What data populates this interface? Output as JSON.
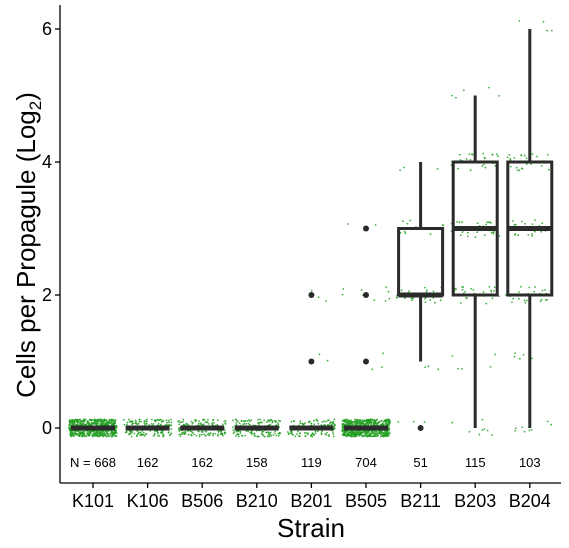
{
  "chart_data": {
    "type": "box",
    "xlabel": "Strain",
    "ylabel_main": "Cells per Propagule (Log",
    "ylabel_sub": "2",
    "ylabel_close": ")",
    "ylim": [
      -0.8,
      6.3
    ],
    "yticks": [
      0,
      2,
      4,
      6
    ],
    "ytick_labels": [
      "0",
      "2",
      "4",
      "6"
    ],
    "grid": false,
    "categories": [
      "K101",
      "K106",
      "B506",
      "B210",
      "B201",
      "B505",
      "B211",
      "B203",
      "B204"
    ],
    "counts": [
      "N = 668",
      "162",
      "162",
      "158",
      "119",
      "704",
      "51",
      "115",
      "103"
    ],
    "count_n": [
      668,
      162,
      162,
      158,
      119,
      704,
      51,
      115,
      103
    ],
    "count_y": -0.53,
    "colors": {
      "points": "#22a022",
      "box": "#2b2b2b",
      "axis": "#000000"
    },
    "boxes": [
      {
        "q1": 0,
        "median": 0,
        "q3": 0,
        "whisker_low": 0,
        "whisker_high": 0,
        "outliers": []
      },
      {
        "q1": 0,
        "median": 0,
        "q3": 0,
        "whisker_low": 0,
        "whisker_high": 0,
        "outliers": []
      },
      {
        "q1": 0,
        "median": 0,
        "q3": 0,
        "whisker_low": 0,
        "whisker_high": 0,
        "outliers": []
      },
      {
        "q1": 0,
        "median": 0,
        "q3": 0,
        "whisker_low": 0,
        "whisker_high": 0,
        "outliers": []
      },
      {
        "q1": 0,
        "median": 0,
        "q3": 0,
        "whisker_low": 0,
        "whisker_high": 0,
        "outliers": [
          1,
          2
        ]
      },
      {
        "q1": 0,
        "median": 0,
        "q3": 0,
        "whisker_low": 0,
        "whisker_high": 0,
        "outliers": [
          1,
          2,
          3
        ]
      },
      {
        "q1": 2,
        "median": 2,
        "q3": 3,
        "whisker_low": 1,
        "whisker_high": 4,
        "outliers": [
          0
        ]
      },
      {
        "q1": 2,
        "median": 3,
        "q3": 4,
        "whisker_low": 0,
        "whisker_high": 5,
        "outliers": []
      },
      {
        "q1": 2,
        "median": 3,
        "q3": 4,
        "whisker_low": 0,
        "whisker_high": 6,
        "outliers": []
      }
    ],
    "jitter_distribution": [
      [
        {
          "y": 0,
          "n": 668
        }
      ],
      [
        {
          "y": 0,
          "n": 162
        }
      ],
      [
        {
          "y": 0,
          "n": 162
        }
      ],
      [
        {
          "y": 0,
          "n": 158
        }
      ],
      [
        {
          "y": 0,
          "n": 114
        },
        {
          "y": 1,
          "n": 2
        },
        {
          "y": 2,
          "n": 3
        }
      ],
      [
        {
          "y": 0,
          "n": 690
        },
        {
          "y": 1,
          "n": 3
        },
        {
          "y": 2,
          "n": 9
        },
        {
          "y": 3,
          "n": 2
        }
      ],
      [
        {
          "y": 0,
          "n": 3
        },
        {
          "y": 1,
          "n": 3
        },
        {
          "y": 2,
          "n": 30
        },
        {
          "y": 3,
          "n": 12
        },
        {
          "y": 4,
          "n": 3
        }
      ],
      [
        {
          "y": 0,
          "n": 8
        },
        {
          "y": 1,
          "n": 5
        },
        {
          "y": 2,
          "n": 30
        },
        {
          "y": 3,
          "n": 37
        },
        {
          "y": 4,
          "n": 30
        },
        {
          "y": 5,
          "n": 5
        }
      ],
      [
        {
          "y": 0,
          "n": 10
        },
        {
          "y": 1,
          "n": 5
        },
        {
          "y": 2,
          "n": 27
        },
        {
          "y": 3,
          "n": 30
        },
        {
          "y": 4,
          "n": 27
        },
        {
          "y": 6,
          "n": 4
        }
      ]
    ]
  }
}
